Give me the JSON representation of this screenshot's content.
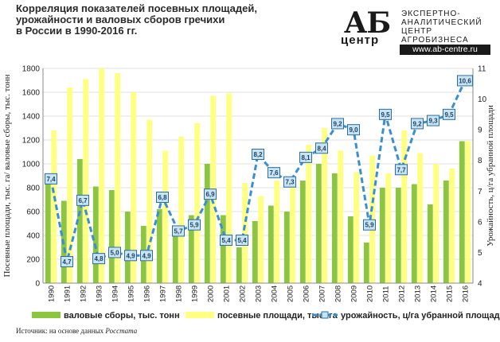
{
  "title_lines": [
    "Корреляция показателей посевных площадей,",
    "урожайности и валовых сборов гречихи",
    "в России в 1990-2016 гг."
  ],
  "logo": {
    "mark": "АБ",
    "mark_sub": "центр",
    "lines": [
      "ЭКСПЕРТНО-",
      "АНАЛИТИЧЕСКИЙ",
      "ЦЕНТР",
      "АГРОБИЗНЕСА"
    ],
    "url": "www.ab-centre.ru"
  },
  "source": {
    "label": "Источник:  на основе данных",
    "org": "Росстата"
  },
  "colors": {
    "harvest": "#8cc63f",
    "area": "#ffff80",
    "yield": "#3a8fd1",
    "label_bg": "#c6e4f4",
    "grid": "#d9d9d9"
  },
  "chart_data": {
    "type": "bar",
    "categories": [
      "1990",
      "1991",
      "1992",
      "1993",
      "1994",
      "1995",
      "1996",
      "1997",
      "1998",
      "1999",
      "2000",
      "2001",
      "2002",
      "2003",
      "2004",
      "2005",
      "2006",
      "2007",
      "2008",
      "2009",
      "2010",
      "2011",
      "2012",
      "2013",
      "2014",
      "2015",
      "2016"
    ],
    "ylabel": "Посевные площади, тыс. га/ валовые сборы, тыс. тонн",
    "y2label": "Урожайность, ц/га убранной площади",
    "ylim": [
      0,
      1800
    ],
    "y_ticks": [
      "0",
      "200",
      "400",
      "600",
      "800",
      "1000",
      "1200",
      "1400",
      "1600",
      "1800"
    ],
    "y2lim": [
      4,
      11
    ],
    "y2_ticks": [
      "4",
      "5",
      "6",
      "7",
      "8",
      "9",
      "10",
      "11"
    ],
    "legend_position": "bottom",
    "series": [
      {
        "name": "валовые сборы, тыс. тонн",
        "type": "bar",
        "values": [
          830,
          690,
          1040,
          810,
          780,
          600,
          480,
          620,
          480,
          570,
          1000,
          570,
          300,
          520,
          650,
          600,
          860,
          1000,
          920,
          560,
          340,
          800,
          800,
          830,
          660,
          860,
          1190
        ]
      },
      {
        "name": "посевные площади, тыс. га",
        "type": "bar",
        "values": [
          1280,
          1640,
          1710,
          1800,
          1760,
          1600,
          1370,
          1110,
          1230,
          1340,
          1570,
          1590,
          840,
          730,
          860,
          840,
          1160,
          1300,
          1110,
          930,
          1070,
          920,
          1280,
          1090,
          1000,
          960,
          1190
        ]
      },
      {
        "name": "урожайность, ц/га убранной площади",
        "type": "line",
        "axis": "right",
        "values": [
          7.4,
          4.7,
          6.7,
          4.8,
          5.0,
          4.9,
          4.9,
          6.8,
          5.7,
          5.9,
          6.9,
          5.4,
          5.4,
          8.2,
          7.6,
          7.3,
          8.1,
          8.4,
          9.2,
          9.0,
          5.9,
          9.5,
          7.7,
          9.2,
          9.3,
          9.5,
          10.6
        ],
        "labels": [
          "7,4",
          "4,7",
          "6,7",
          "4,8",
          "5,0",
          "4,9",
          "4,9",
          "6,8",
          "5,7",
          "5,9",
          "6,9",
          "5,4",
          "5,4",
          "8,2",
          "7,6",
          "7,3",
          "8,1",
          "8,4",
          "9,2",
          "9,0",
          "5,9",
          "9,5",
          "7,7",
          "9,2",
          "9,3",
          "9,5",
          "10,6"
        ]
      }
    ]
  }
}
